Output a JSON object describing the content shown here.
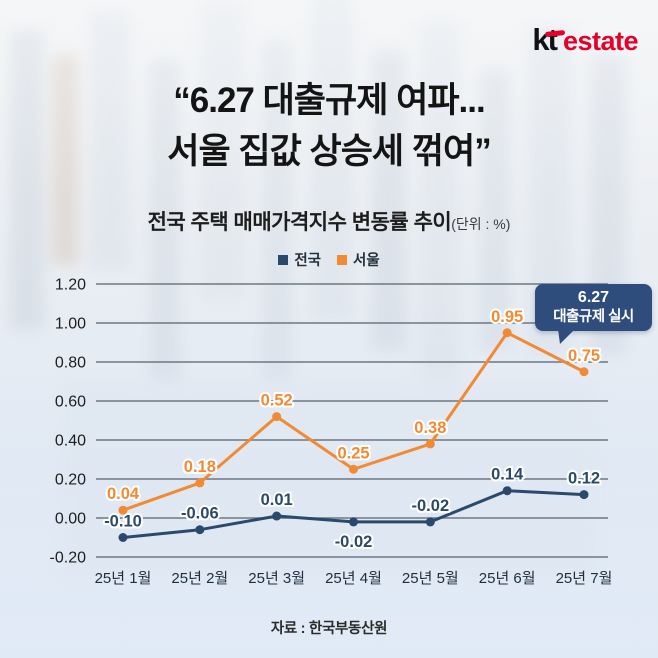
{
  "logo": {
    "kt_text": "kt",
    "estate_text": "estate",
    "kt_color": "#111111",
    "accent_color": "#e5002b"
  },
  "title": {
    "line1": "“6.27 대출규제 여파...",
    "line2": "서울 집값 상승세 꺾여”"
  },
  "subtitle": {
    "text": "전국 주택 매매가격지수 변동률 추이",
    "unit": "(단위 : %)"
  },
  "callout": {
    "line1": "6.27",
    "line2": "대출규제 실시",
    "bg_color": "#2e4d7d",
    "text_color": "#ffffff"
  },
  "source": "자료 : 한국부동산원",
  "chart_data": {
    "type": "line",
    "title": "전국 주택 매매가격지수 변동률 추이",
    "unit": "%",
    "categories": [
      "25년 1월",
      "25년 2월",
      "25년 3월",
      "25년 4월",
      "25년 5월",
      "25년 6월",
      "25년 7월"
    ],
    "series": [
      {
        "name": "전국",
        "color": "#2b4a6b",
        "values": [
          -0.1,
          -0.06,
          0.01,
          -0.02,
          -0.02,
          0.14,
          0.12
        ],
        "label_below_indices": [
          3
        ]
      },
      {
        "name": "서울",
        "color": "#f28a33",
        "values": [
          0.04,
          0.18,
          0.52,
          0.25,
          0.38,
          0.95,
          0.75
        ],
        "label_below_indices": []
      }
    ],
    "ylim": [
      -0.2,
      1.2
    ],
    "yticks": [
      1.2,
      1.0,
      0.8,
      0.6,
      0.4,
      0.2,
      0.0,
      -0.2
    ],
    "grid": true,
    "gridline_color": "#6d7884",
    "axis_label_color": "#1e1e1e",
    "xtick_label_color": "#1f2d3d",
    "legend_position": "top-center",
    "annotation": "6.27 대출규제 실시"
  }
}
